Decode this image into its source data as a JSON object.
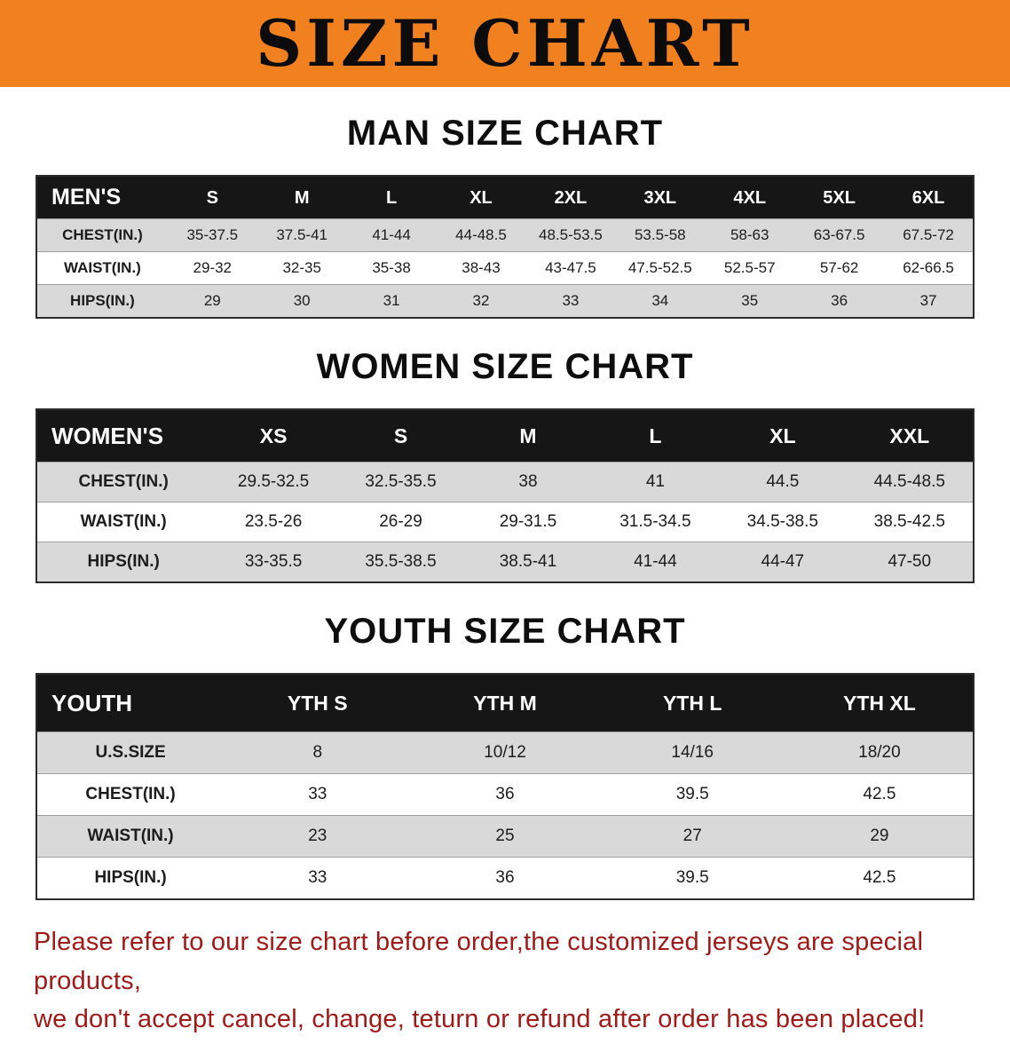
{
  "banner": {
    "title": "SIZE CHART",
    "background_color": "#f1801e"
  },
  "sections": [
    {
      "heading": "MAN SIZE CHART",
      "table": {
        "header": [
          "MEN'S",
          "S",
          "M",
          "L",
          "XL",
          "2XL",
          "3XL",
          "4XL",
          "5XL",
          "6XL"
        ],
        "rows": [
          [
            "CHEST(IN.)",
            "35-37.5",
            "37.5-41",
            "41-44",
            "44-48.5",
            "48.5-53.5",
            "53.5-58",
            "58-63",
            "63-67.5",
            "67.5-72"
          ],
          [
            "WAIST(IN.)",
            "29-32",
            "32-35",
            "35-38",
            "38-43",
            "43-47.5",
            "47.5-52.5",
            "52.5-57",
            "57-62",
            "62-66.5"
          ],
          [
            "HIPS(IN.)",
            "29",
            "30",
            "31",
            "32",
            "33",
            "34",
            "35",
            "36",
            "37"
          ]
        ]
      }
    },
    {
      "heading": "WOMEN SIZE CHART",
      "table": {
        "header": [
          "WOMEN'S",
          "XS",
          "S",
          "M",
          "L",
          "XL",
          "XXL"
        ],
        "rows": [
          [
            "CHEST(IN.)",
            "29.5-32.5",
            "32.5-35.5",
            "38",
            "41",
            "44.5",
            "44.5-48.5"
          ],
          [
            "WAIST(IN.)",
            "23.5-26",
            "26-29",
            "29-31.5",
            "31.5-34.5",
            "34.5-38.5",
            "38.5-42.5"
          ],
          [
            "HIPS(IN.)",
            "33-35.5",
            "35.5-38.5",
            "38.5-41",
            "41-44",
            "44-47",
            "47-50"
          ]
        ]
      }
    },
    {
      "heading": "YOUTH SIZE CHART",
      "table": {
        "header": [
          "YOUTH",
          "YTH S",
          "YTH M",
          "YTH L",
          "YTH XL"
        ],
        "rows": [
          [
            "U.S.SIZE",
            "8",
            "10/12",
            "14/16",
            "18/20"
          ],
          [
            "CHEST(IN.)",
            "33",
            "36",
            "39.5",
            "42.5"
          ],
          [
            "WAIST(IN.)",
            "23",
            "25",
            "27",
            "29"
          ],
          [
            "HIPS(IN.)",
            "33",
            "36",
            "39.5",
            "42.5"
          ]
        ]
      }
    }
  ],
  "footer_note": {
    "line1": "Please refer to our size chart before order,the customized jerseys are special products,",
    "line2": "we don't accept cancel, change, teturn or refund after order has been placed!",
    "text_color": "#a01a1a"
  }
}
